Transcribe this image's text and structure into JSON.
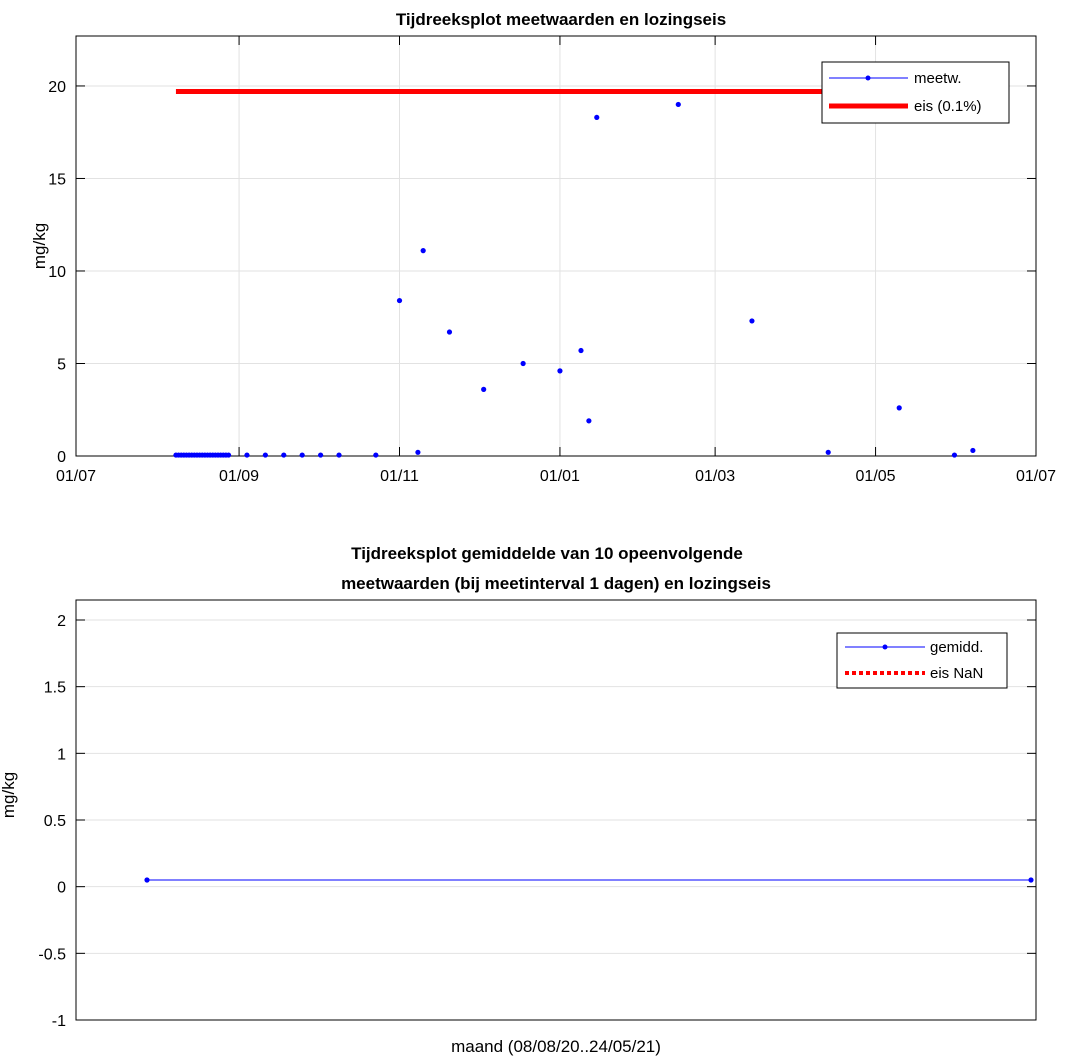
{
  "chart_data": [
    {
      "type": "scatter",
      "title": "Tijdreeksplot meetwaarden en lozingseis",
      "xlabel": "",
      "ylabel": "mg/kg",
      "x_ticks": [
        "01/07",
        "01/09",
        "01/11",
        "01/01",
        "01/03",
        "01/05",
        "01/07"
      ],
      "x_tick_dates": [
        "2020-07-01",
        "2020-09-01",
        "2020-11-01",
        "2021-01-01",
        "2021-03-01",
        "2021-05-01",
        "2021-07-01"
      ],
      "xlim": [
        "2020-07-01",
        "2021-07-01"
      ],
      "y_ticks": [
        "0",
        "5",
        "10",
        "15",
        "20"
      ],
      "ylim": [
        0,
        22.7
      ],
      "grid": true,
      "legend_position": "top-right",
      "series": [
        {
          "name": "meetw.",
          "color": "#0000ff",
          "style": "markers",
          "points": [
            {
              "x": "2020-08-08",
              "y": 0.05
            },
            {
              "x": "2020-08-09",
              "y": 0.05
            },
            {
              "x": "2020-08-10",
              "y": 0.05
            },
            {
              "x": "2020-08-11",
              "y": 0.05
            },
            {
              "x": "2020-08-12",
              "y": 0.05
            },
            {
              "x": "2020-08-13",
              "y": 0.05
            },
            {
              "x": "2020-08-14",
              "y": 0.05
            },
            {
              "x": "2020-08-15",
              "y": 0.05
            },
            {
              "x": "2020-08-16",
              "y": 0.05
            },
            {
              "x": "2020-08-17",
              "y": 0.05
            },
            {
              "x": "2020-08-18",
              "y": 0.05
            },
            {
              "x": "2020-08-19",
              "y": 0.05
            },
            {
              "x": "2020-08-20",
              "y": 0.05
            },
            {
              "x": "2020-08-21",
              "y": 0.05
            },
            {
              "x": "2020-08-22",
              "y": 0.05
            },
            {
              "x": "2020-08-23",
              "y": 0.05
            },
            {
              "x": "2020-08-24",
              "y": 0.05
            },
            {
              "x": "2020-08-25",
              "y": 0.05
            },
            {
              "x": "2020-08-26",
              "y": 0.05
            },
            {
              "x": "2020-08-27",
              "y": 0.05
            },
            {
              "x": "2020-08-28",
              "y": 0.05
            },
            {
              "x": "2020-09-04",
              "y": 0.05
            },
            {
              "x": "2020-09-11",
              "y": 0.05
            },
            {
              "x": "2020-09-18",
              "y": 0.05
            },
            {
              "x": "2020-09-25",
              "y": 0.05
            },
            {
              "x": "2020-10-02",
              "y": 0.05
            },
            {
              "x": "2020-10-09",
              "y": 0.05
            },
            {
              "x": "2020-10-23",
              "y": 0.05
            },
            {
              "x": "2020-11-01",
              "y": 8.4
            },
            {
              "x": "2020-11-08",
              "y": 0.2
            },
            {
              "x": "2020-11-10",
              "y": 11.1
            },
            {
              "x": "2020-11-20",
              "y": 6.7
            },
            {
              "x": "2020-12-03",
              "y": 3.6
            },
            {
              "x": "2020-12-18",
              "y": 5.0
            },
            {
              "x": "2021-01-01",
              "y": 4.6
            },
            {
              "x": "2021-01-09",
              "y": 5.7
            },
            {
              "x": "2021-01-12",
              "y": 1.9
            },
            {
              "x": "2021-01-15",
              "y": 18.3
            },
            {
              "x": "2021-02-15",
              "y": 19.0
            },
            {
              "x": "2021-03-15",
              "y": 7.3
            },
            {
              "x": "2021-04-13",
              "y": 0.2
            },
            {
              "x": "2021-05-10",
              "y": 2.6
            },
            {
              "x": "2021-05-31",
              "y": 0.05
            },
            {
              "x": "2021-06-07",
              "y": 0.3
            }
          ]
        },
        {
          "name": "eis (0.1%)",
          "color": "#ff0000",
          "style": "thick-line",
          "points": [
            {
              "x": "2020-08-08",
              "y": 19.7
            },
            {
              "x": "2021-05-24",
              "y": 19.7
            }
          ]
        }
      ]
    },
    {
      "type": "line",
      "title": "Tijdreeksplot gemiddelde van 10 opeenvolgende",
      "subtitle": "meetwaarden (bij meetinterval 1 dagen) en lozingseis",
      "xlabel": "maand (08/08/20..24/05/21)",
      "ylabel": "mg/kg",
      "y_ticks": [
        "-1",
        "-0.5",
        "0",
        "0.5",
        "1",
        "1.5",
        "2"
      ],
      "ylim": [
        -1,
        2.15
      ],
      "grid": true,
      "legend_position": "top-right",
      "series": [
        {
          "name": "gemidd.",
          "color": "#0000ff",
          "style": "line-markers",
          "points": [
            {
              "x": "2020-08-08",
              "y": 0.05
            },
            {
              "x": "2021-05-24",
              "y": 0.05
            }
          ]
        },
        {
          "name": "eis NaN",
          "color": "#ff0000",
          "style": "dotted",
          "points": []
        }
      ]
    }
  ]
}
